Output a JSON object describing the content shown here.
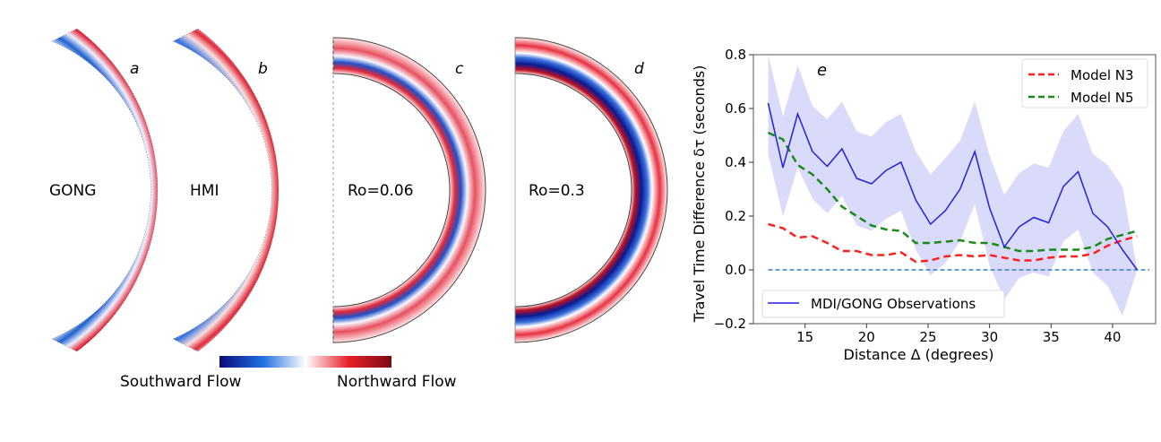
{
  "panels": [
    {
      "letter": "a",
      "label": "GONG"
    },
    {
      "letter": "b",
      "label": "HMI"
    },
    {
      "letter": "c",
      "label": "Ro=0.06"
    },
    {
      "letter": "d",
      "label": "Ro=0.3"
    }
  ],
  "colorbar": {
    "left_label": "Southward Flow",
    "right_label": "Northward Flow",
    "colors": [
      "#0a0a7a",
      "#1f6fe0",
      "#ffffff",
      "#e8202a",
      "#7a0a14"
    ]
  },
  "chart_data": {
    "type": "line",
    "panel_letter": "e",
    "xlabel": "Distance Δ (degrees)",
    "ylabel": "Travel Time Difference  δτ (seconds)",
    "xlim": [
      10.8,
      43.5
    ],
    "ylim": [
      -0.2,
      0.8
    ],
    "xticks": [
      15,
      20,
      25,
      30,
      35,
      40
    ],
    "yticks": [
      -0.2,
      0.0,
      0.2,
      0.4,
      0.6,
      0.8
    ],
    "ytick_labels": [
      "−0.2",
      "0.0",
      "0.2",
      "0.4",
      "0.6",
      "0.8"
    ],
    "grid": false,
    "x": [
      12,
      13.2,
      14.4,
      15.6,
      16.8,
      18,
      19.2,
      20.4,
      21.6,
      22.8,
      24,
      25.2,
      26.4,
      27.6,
      28.8,
      30,
      31.2,
      32.4,
      33.6,
      34.8,
      36,
      37.2,
      38.4,
      39.6,
      40.8,
      42
    ],
    "series": [
      {
        "name": "MDI/GONG Observations",
        "style": "solid",
        "color": "#2020e0",
        "band_color": "#d8d8fa",
        "values": [
          0.62,
          0.38,
          0.58,
          0.44,
          0.385,
          0.45,
          0.34,
          0.32,
          0.37,
          0.4,
          0.26,
          0.17,
          0.22,
          0.3,
          0.44,
          0.23,
          0.085,
          0.16,
          0.195,
          0.175,
          0.31,
          0.365,
          0.21,
          0.16,
          0.075,
          0.0
        ],
        "upper": [
          0.8,
          0.57,
          0.76,
          0.61,
          0.56,
          0.625,
          0.515,
          0.495,
          0.55,
          0.58,
          0.44,
          0.355,
          0.415,
          0.48,
          0.625,
          0.425,
          0.28,
          0.36,
          0.395,
          0.38,
          0.515,
          0.58,
          0.43,
          0.39,
          0.31,
          0.0
        ],
        "lower": [
          0.43,
          0.2,
          0.38,
          0.265,
          0.21,
          0.275,
          0.165,
          0.145,
          0.19,
          0.22,
          0.075,
          -0.02,
          0.025,
          0.105,
          0.245,
          0.015,
          -0.11,
          -0.03,
          -0.01,
          -0.025,
          0.105,
          0.15,
          -0.01,
          -0.06,
          -0.17,
          0.0
        ]
      },
      {
        "name": "Model N3",
        "style": "dashed",
        "color": "#ff2020",
        "values": [
          0.17,
          0.155,
          0.12,
          0.125,
          0.1,
          0.07,
          0.07,
          0.055,
          0.055,
          0.065,
          0.03,
          0.035,
          0.05,
          0.055,
          0.05,
          0.055,
          0.045,
          0.035,
          0.035,
          0.045,
          0.05,
          0.05,
          0.06,
          0.09,
          0.11,
          0.125
        ]
      },
      {
        "name": "Model N5",
        "style": "dashed",
        "color": "#1a8a1a",
        "values": [
          0.51,
          0.485,
          0.39,
          0.355,
          0.3,
          0.235,
          0.2,
          0.165,
          0.15,
          0.145,
          0.1,
          0.1,
          0.105,
          0.11,
          0.1,
          0.1,
          0.085,
          0.07,
          0.07,
          0.075,
          0.075,
          0.075,
          0.085,
          0.115,
          0.13,
          0.145
        ]
      }
    ],
    "reference_line": {
      "y": 0.0,
      "x_range": [
        12,
        43
      ],
      "color": "#3a7fc0",
      "style": "dashed"
    }
  }
}
